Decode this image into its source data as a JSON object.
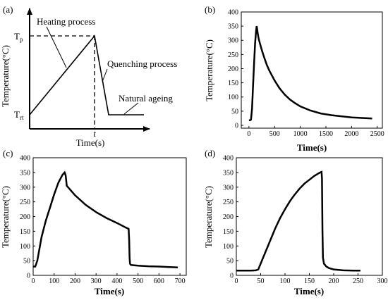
{
  "chart_data": [
    {
      "panel": "(a)",
      "type": "line",
      "schematic": true,
      "xlabel": "Time(s)",
      "ylabel": "Temperature(°C)",
      "xtick_labels": [
        "t"
      ],
      "ytick_labels": [
        {
          "base": "T",
          "sub": "p"
        },
        {
          "base": "T",
          "sub": "rt"
        }
      ],
      "annotations": [
        "Heating process",
        "Quenching process",
        "Natural ageing"
      ],
      "grid": false
    },
    {
      "panel": "(b)",
      "type": "line",
      "xlabel": "Time(s)",
      "ylabel": "Temperature(°C)",
      "xlim": [
        -150,
        2600
      ],
      "ylim": [
        -10,
        400
      ],
      "xticks": [
        0,
        500,
        1000,
        1500,
        2000,
        2500
      ],
      "yticks": [
        0,
        50,
        100,
        150,
        200,
        250,
        300,
        350,
        400
      ],
      "x": [
        0,
        20,
        40,
        60,
        80,
        100,
        120,
        140,
        150,
        160,
        170,
        190,
        220,
        260,
        300,
        350,
        400,
        500,
        600,
        700,
        800,
        900,
        1000,
        1200,
        1400,
        1600,
        1800,
        2000,
        2200,
        2400
      ],
      "y": [
        18,
        18,
        20,
        60,
        140,
        220,
        290,
        335,
        350,
        340,
        325,
        305,
        285,
        260,
        238,
        212,
        192,
        158,
        130,
        108,
        91,
        78,
        67,
        52,
        42,
        36,
        32,
        28,
        26,
        24
      ],
      "grid": false
    },
    {
      "panel": "(c)",
      "type": "line",
      "xlabel": "Time(s)",
      "ylabel": "Temperature(°C)",
      "xlim": [
        0,
        730
      ],
      "ylim": [
        0,
        400
      ],
      "xticks": [
        0,
        100,
        200,
        300,
        400,
        500,
        600,
        700
      ],
      "yticks": [
        0,
        50,
        100,
        150,
        200,
        250,
        300,
        350,
        400
      ],
      "x": [
        0,
        10,
        20,
        30,
        40,
        60,
        80,
        100,
        120,
        140,
        150,
        155,
        160,
        200,
        250,
        300,
        350,
        400,
        440,
        455,
        458,
        460,
        462,
        465,
        470,
        500,
        550,
        600,
        650,
        690
      ],
      "y": [
        30,
        30,
        50,
        90,
        130,
        185,
        230,
        275,
        315,
        342,
        350,
        340,
        305,
        272,
        240,
        215,
        195,
        178,
        163,
        158,
        120,
        60,
        40,
        36,
        35,
        33,
        31,
        30,
        28,
        27
      ],
      "grid": false
    },
    {
      "panel": "(d)",
      "type": "line",
      "xlabel": "Time(s)",
      "ylabel": "Temperature(°C)",
      "xlim": [
        0,
        300
      ],
      "ylim": [
        0,
        400
      ],
      "xticks": [
        0,
        50,
        100,
        150,
        200,
        250,
        300
      ],
      "yticks": [
        0,
        50,
        100,
        150,
        200,
        250,
        300,
        350,
        400
      ],
      "x": [
        0,
        10,
        20,
        30,
        40,
        45,
        50,
        60,
        70,
        80,
        90,
        100,
        110,
        120,
        130,
        140,
        150,
        160,
        170,
        175,
        176,
        177,
        178,
        180,
        185,
        190,
        200,
        220,
        240,
        255
      ],
      "y": [
        16,
        16,
        16,
        16,
        17,
        20,
        40,
        80,
        120,
        160,
        195,
        225,
        252,
        275,
        295,
        312,
        325,
        338,
        348,
        352,
        330,
        150,
        60,
        40,
        30,
        25,
        20,
        17,
        16,
        16
      ],
      "grid": false
    }
  ]
}
